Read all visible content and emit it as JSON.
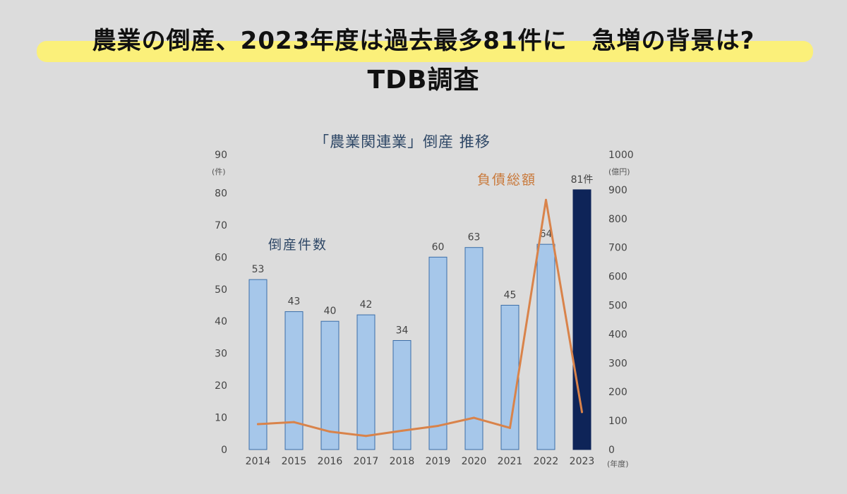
{
  "headline": {
    "line1": "農業の倒産、2023年度は過去最多81件に　急増の背景は?",
    "line2": "TDB調査",
    "highlight_color": "#fbf07a"
  },
  "chart_data": {
    "type": "bar",
    "title": "「農業関連業」倒産 推移",
    "categories": [
      "2014",
      "2015",
      "2016",
      "2017",
      "2018",
      "2019",
      "2020",
      "2021",
      "2022",
      "2023"
    ],
    "series": [
      {
        "name": "倒産件数",
        "type": "bar",
        "axis": "left",
        "values": [
          53,
          43,
          40,
          42,
          34,
          60,
          63,
          45,
          64,
          81
        ],
        "data_labels": [
          "53",
          "43",
          "40",
          "42",
          "34",
          "60",
          "63",
          "45",
          "64",
          "81件"
        ],
        "color": "#a6c7ea",
        "highlight_color": "#0e2458"
      },
      {
        "name": "負債総額",
        "type": "line",
        "axis": "right",
        "values": [
          88,
          95,
          62,
          47,
          65,
          82,
          110,
          75,
          865,
          130
        ],
        "color": "#d9834a"
      }
    ],
    "y_left": {
      "unit": "(件)",
      "ylim": [
        0,
        90
      ],
      "ticks": [
        0,
        10,
        20,
        30,
        40,
        50,
        60,
        70,
        80,
        90
      ]
    },
    "y_right": {
      "unit": "(億円)",
      "ylim": [
        0,
        1000
      ],
      "ticks": [
        0,
        100,
        200,
        300,
        400,
        500,
        600,
        700,
        800,
        900,
        1000
      ]
    },
    "x_unit": "(年度)",
    "grid": false
  }
}
